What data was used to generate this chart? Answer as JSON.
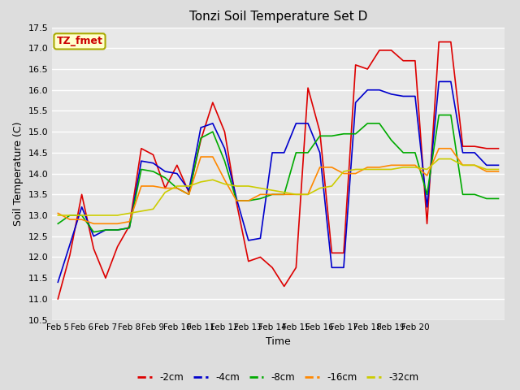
{
  "title": "Tonzi Soil Temperature Set D",
  "xlabel": "Time",
  "ylabel": "Soil Temperature (C)",
  "ylim": [
    10.5,
    17.5
  ],
  "background_color": "#dddddd",
  "plot_bg_color": "#e8e8e8",
  "annotation_text": "TZ_fmet",
  "annotation_color": "#cc0000",
  "annotation_bg": "#ffffcc",
  "annotation_border": "#aaaa00",
  "series_colors": [
    "#dd0000",
    "#0000cc",
    "#00aa00",
    "#ff8800",
    "#cccc00"
  ],
  "series_lw": 1.2,
  "data_2cm": [
    11.0,
    12.05,
    13.5,
    12.2,
    11.5,
    12.25,
    12.75,
    14.6,
    14.45,
    13.65,
    14.2,
    13.55,
    14.8,
    15.7,
    15.0,
    13.3,
    11.9,
    12.0,
    11.75,
    11.3,
    11.75,
    16.05,
    15.0,
    12.1,
    12.1,
    16.6,
    16.5,
    16.95,
    16.95,
    16.7,
    16.7,
    12.8,
    17.15,
    17.15,
    14.65,
    14.65,
    14.6,
    14.6
  ],
  "data_4cm": [
    11.4,
    12.3,
    13.2,
    12.5,
    12.65,
    12.65,
    12.7,
    14.3,
    14.25,
    14.05,
    14.0,
    13.6,
    15.1,
    15.2,
    14.6,
    13.4,
    12.4,
    12.45,
    14.5,
    14.5,
    15.2,
    15.2,
    14.5,
    11.75,
    11.75,
    15.7,
    16.0,
    16.0,
    15.9,
    15.85,
    15.85,
    13.2,
    16.2,
    16.2,
    14.5,
    14.5,
    14.2,
    14.2
  ],
  "data_8cm": [
    12.8,
    13.0,
    13.0,
    12.6,
    12.65,
    12.65,
    12.7,
    14.1,
    14.05,
    13.9,
    13.65,
    13.5,
    14.85,
    15.0,
    14.3,
    13.35,
    13.35,
    13.4,
    13.5,
    13.5,
    14.5,
    14.5,
    14.9,
    14.9,
    14.95,
    14.95,
    15.2,
    15.2,
    14.8,
    14.5,
    14.5,
    13.5,
    15.4,
    15.4,
    13.5,
    13.5,
    13.4,
    13.4
  ],
  "data_16cm": [
    13.05,
    12.9,
    12.9,
    12.8,
    12.8,
    12.8,
    12.85,
    13.7,
    13.7,
    13.65,
    13.65,
    13.5,
    14.4,
    14.4,
    13.85,
    13.35,
    13.35,
    13.5,
    13.5,
    13.5,
    13.5,
    13.5,
    14.15,
    14.15,
    14.0,
    14.0,
    14.15,
    14.15,
    14.2,
    14.2,
    14.2,
    13.95,
    14.6,
    14.6,
    14.2,
    14.2,
    14.05,
    14.05
  ],
  "data_32cm": [
    13.0,
    13.0,
    13.0,
    13.0,
    13.0,
    13.0,
    13.05,
    13.1,
    13.15,
    13.55,
    13.7,
    13.7,
    13.8,
    13.85,
    13.75,
    13.7,
    13.7,
    13.65,
    13.6,
    13.55,
    13.5,
    13.5,
    13.65,
    13.7,
    14.05,
    14.1,
    14.1,
    14.1,
    14.1,
    14.15,
    14.15,
    14.1,
    14.35,
    14.35,
    14.2,
    14.2,
    14.1,
    14.1
  ],
  "xtick_positions": [
    0,
    2,
    4,
    6,
    8,
    10,
    12,
    14,
    16,
    18,
    20,
    22,
    24,
    26,
    28,
    30,
    32,
    34,
    36
  ],
  "xtick_labels": [
    "Feb 5",
    "Feb 6",
    "Feb 7",
    "Feb 8",
    "Feb 9",
    "Feb 10",
    "Feb 11",
    "Feb 12",
    "Feb 13",
    "Feb 14",
    "Feb 15",
    "Feb 16",
    "Feb 17",
    "Feb 18",
    "Feb 19",
    "Feb 20",
    "",
    "",
    ""
  ],
  "yticks": [
    10.5,
    11.0,
    11.5,
    12.0,
    12.5,
    13.0,
    13.5,
    14.0,
    14.5,
    15.0,
    15.5,
    16.0,
    16.5,
    17.0,
    17.5
  ],
  "legend_labels": [
    "-2cm",
    "-4cm",
    "-8cm",
    "-16cm",
    "-32cm"
  ]
}
